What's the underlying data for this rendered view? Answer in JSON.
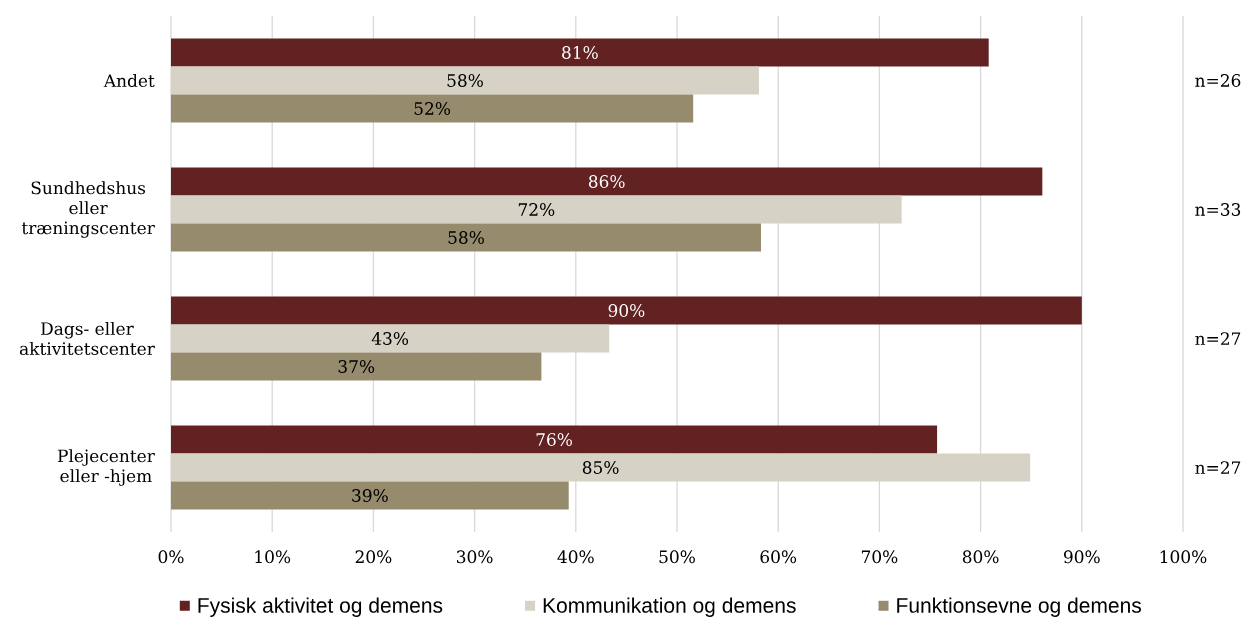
{
  "chart_data": {
    "type": "bar",
    "orientation": "horizontal",
    "categories": [
      "Andet",
      "Sundhedshus eller træningscenter",
      "Dags- eller aktivitetscenter",
      "Plejecenter eller -hjem"
    ],
    "series": [
      {
        "name": "Fysisk aktivitet og demens",
        "color": "#622221",
        "values": [
          80.8,
          86.1,
          90.0,
          75.7
        ],
        "value_labels": [
          "81%",
          "86%",
          "90%",
          "76%"
        ]
      },
      {
        "name": "Kommunikation og demens",
        "color": "#d6d2c5",
        "values": [
          58.1,
          72.2,
          43.3,
          84.9
        ],
        "value_labels": [
          "58%",
          "72%",
          "43%",
          "85%"
        ]
      },
      {
        "name": "Funktionsevne og demens",
        "color": "#968b6c",
        "values": [
          51.6,
          58.3,
          36.6,
          39.3
        ],
        "value_labels": [
          "52%",
          "58%",
          "37%",
          "39%"
        ]
      }
    ],
    "xlim": [
      0,
      100
    ],
    "xticks": [
      {
        "value": 0,
        "label": "0%"
      },
      {
        "value": 10,
        "label": "10%"
      },
      {
        "value": 20,
        "label": "20%"
      },
      {
        "value": 30,
        "label": "30%"
      },
      {
        "value": 40,
        "label": "40%"
      },
      {
        "value": 50,
        "label": "50%"
      },
      {
        "value": 60,
        "label": "60%"
      },
      {
        "value": 70,
        "label": "70%"
      },
      {
        "value": 80,
        "label": "80%"
      },
      {
        "value": 90,
        "label": "90%"
      },
      {
        "value": 100,
        "label": "100%"
      }
    ],
    "grid": "x",
    "legend": "bottom",
    "annotations": [
      "n=26",
      "n=33",
      "n=27",
      "n=27"
    ]
  }
}
